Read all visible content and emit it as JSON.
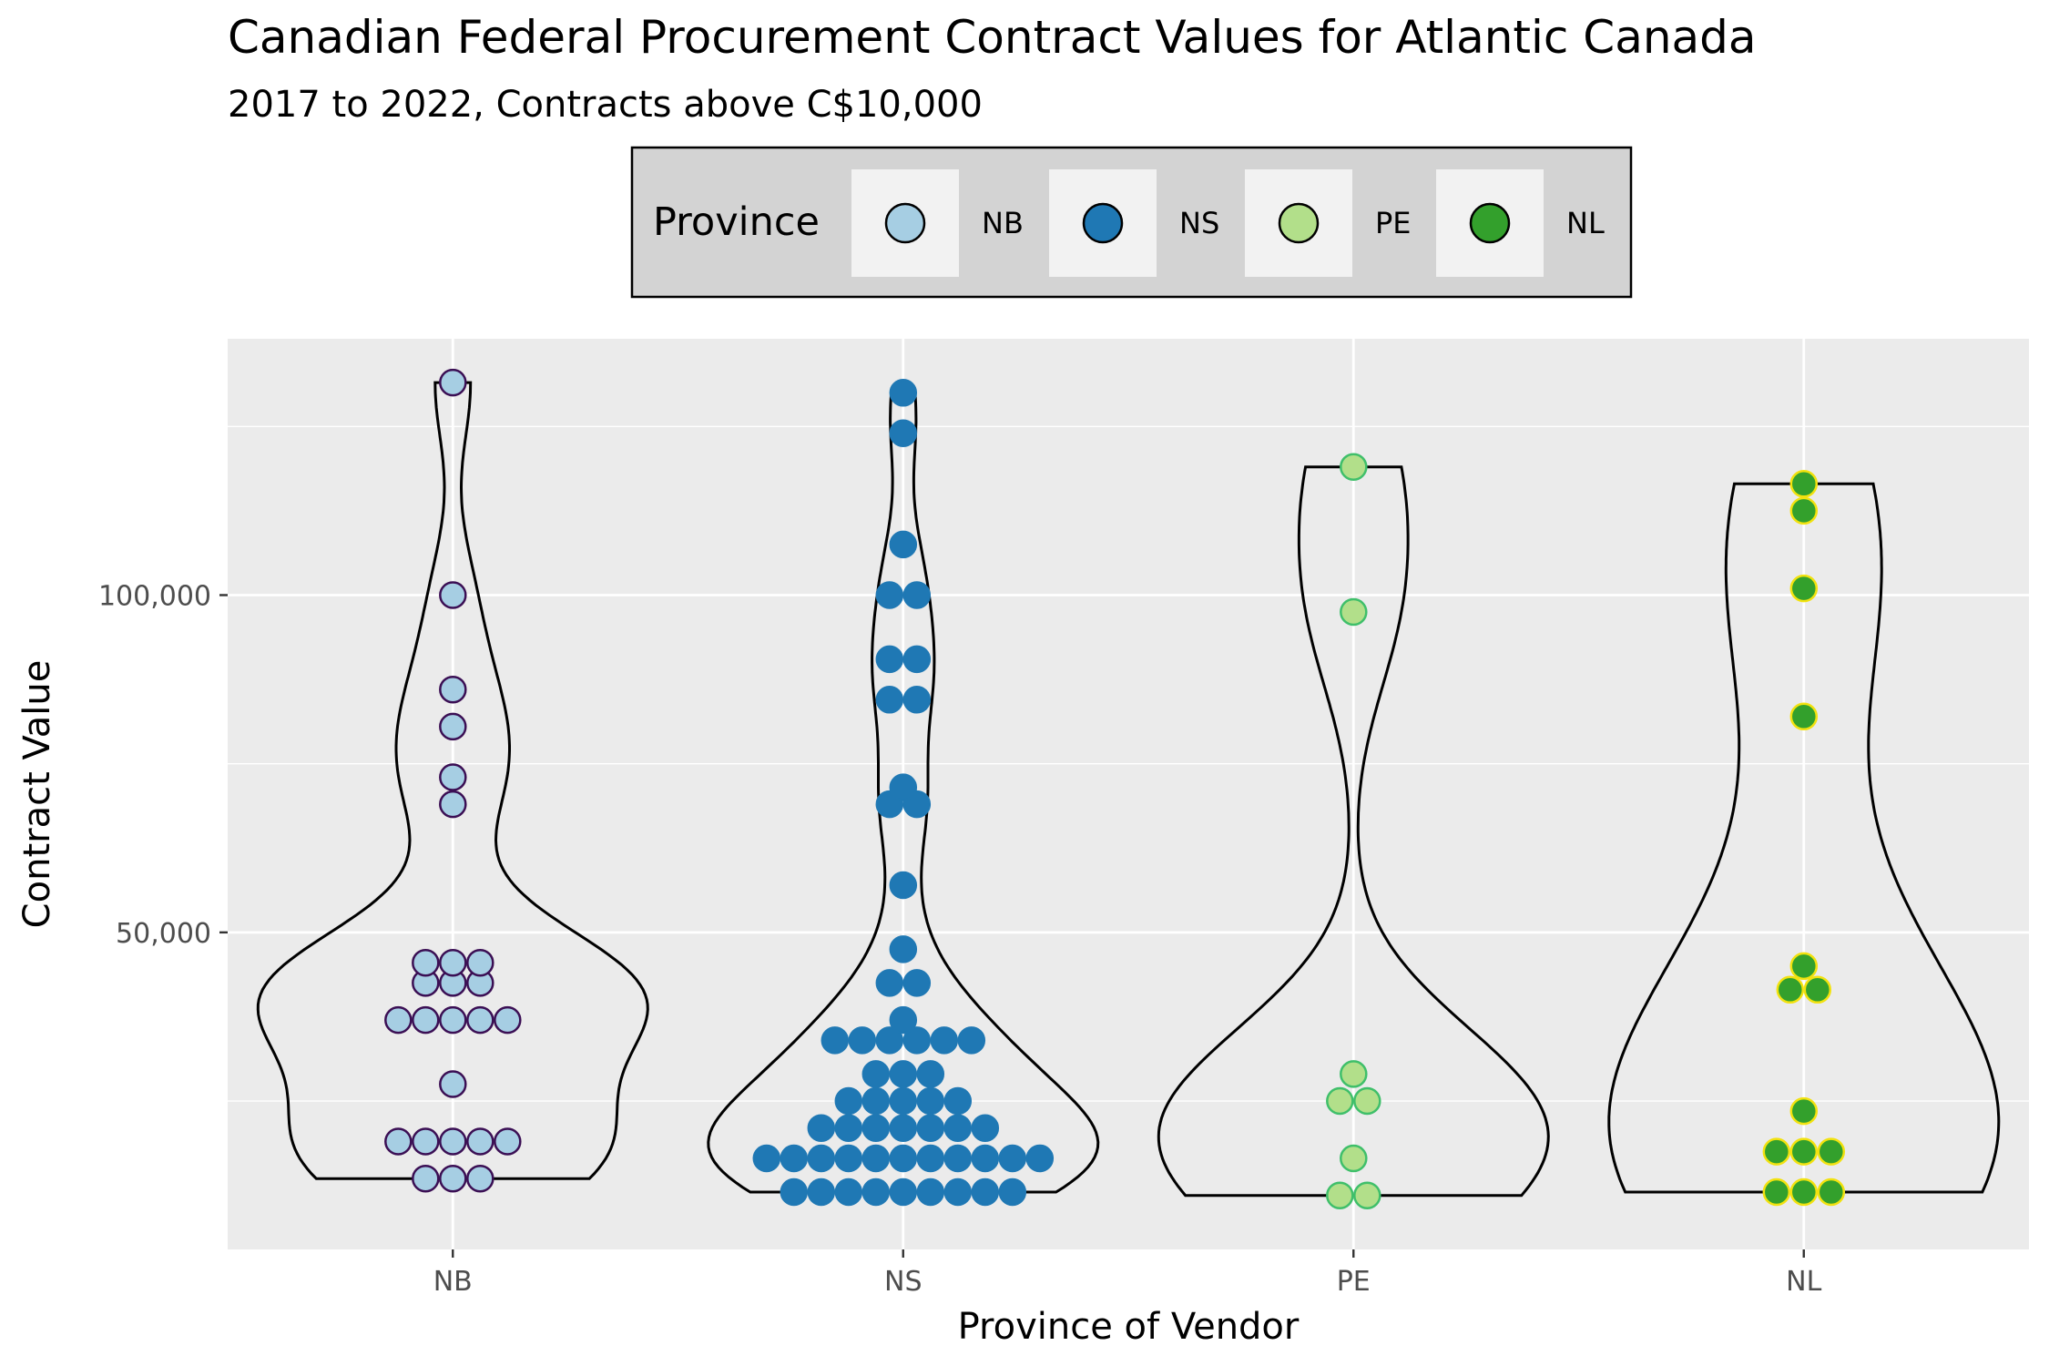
{
  "chart_data": {
    "type": "violin",
    "title": "Canadian Federal Procurement Contract Values for Atlantic Canada",
    "subtitle": "2017 to 2022, Contracts above C$10,000",
    "xlabel": "Province of Vendor",
    "ylabel": "Contract Value",
    "categories": [
      "NB",
      "NS",
      "PE",
      "NL"
    ],
    "ylim": [
      3000,
      138000
    ],
    "y_ticks": [
      {
        "value": 50000,
        "label": "50,000"
      },
      {
        "value": 100000,
        "label": "100,000"
      }
    ],
    "grid": true,
    "legend": {
      "title": "Province",
      "position": "top",
      "entries": [
        {
          "label": "NB",
          "color": "#a6cee3"
        },
        {
          "label": "NS",
          "color": "#1f78b4"
        },
        {
          "label": "PE",
          "color": "#b2df8a"
        },
        {
          "label": "NL",
          "color": "#33a02c"
        }
      ]
    },
    "series": [
      {
        "name": "NB",
        "fill": "#a6cee3",
        "stroke": "#3b0f54",
        "values": [
          131500,
          100000,
          86000,
          80500,
          73000,
          69000,
          45500,
          45500,
          45500,
          42500,
          42500,
          42500,
          37000,
          37000,
          37000,
          37000,
          37000,
          27500,
          19000,
          19000,
          19000,
          19000,
          19000,
          13500,
          13500,
          13500
        ]
      },
      {
        "name": "NS",
        "fill": "#1f78b4",
        "stroke": "#1f78b4",
        "values": [
          130000,
          124000,
          107500,
          100000,
          100000,
          90500,
          90500,
          84500,
          84500,
          71500,
          69000,
          69000,
          57000,
          47500,
          42500,
          42500,
          37000,
          34000,
          34000,
          34000,
          34000,
          34000,
          34000,
          29000,
          29000,
          29000,
          25000,
          25000,
          25000,
          25000,
          25000,
          21000,
          21000,
          21000,
          21000,
          21000,
          21000,
          21000,
          16500,
          16500,
          16500,
          16500,
          16500,
          16500,
          16500,
          16500,
          16500,
          16500,
          16500,
          11500,
          11500,
          11500,
          11500,
          11500,
          11500,
          11500,
          11500,
          11500
        ]
      },
      {
        "name": "PE",
        "fill": "#b2df8a",
        "stroke": "#3fbf6a",
        "values": [
          119000,
          97500,
          29000,
          25000,
          25000,
          16500,
          11000,
          11000
        ]
      },
      {
        "name": "NL",
        "fill": "#33a02c",
        "stroke": "#f2e20f",
        "values": [
          116500,
          112500,
          101000,
          82000,
          45000,
          41500,
          41500,
          23500,
          17500,
          17500,
          17500,
          11500,
          11500,
          11500
        ]
      }
    ]
  }
}
